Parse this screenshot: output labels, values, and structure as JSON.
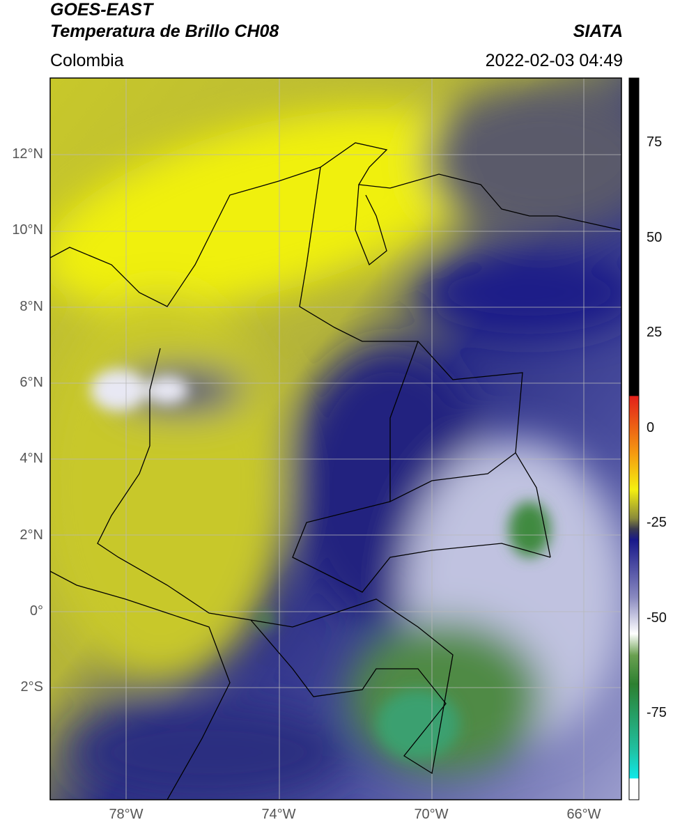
{
  "header": {
    "title_line1": "GOES-EAST",
    "title_line2": "Temperatura de Brillo CH08",
    "region": "Colombia",
    "agency": "SIATA",
    "datetime": "2022-02-03 04:49"
  },
  "map": {
    "lat_ticks": [
      "12°N",
      "10°N",
      "8°N",
      "6°N",
      "4°N",
      "2°N",
      "0°",
      "2°S"
    ],
    "lon_ticks": [
      "78°W",
      "74°W",
      "70°W",
      "66°W"
    ]
  },
  "colorbar": {
    "ticks": [
      "75",
      "50",
      "25",
      "0",
      "-25",
      "-50",
      "-75"
    ]
  }
}
